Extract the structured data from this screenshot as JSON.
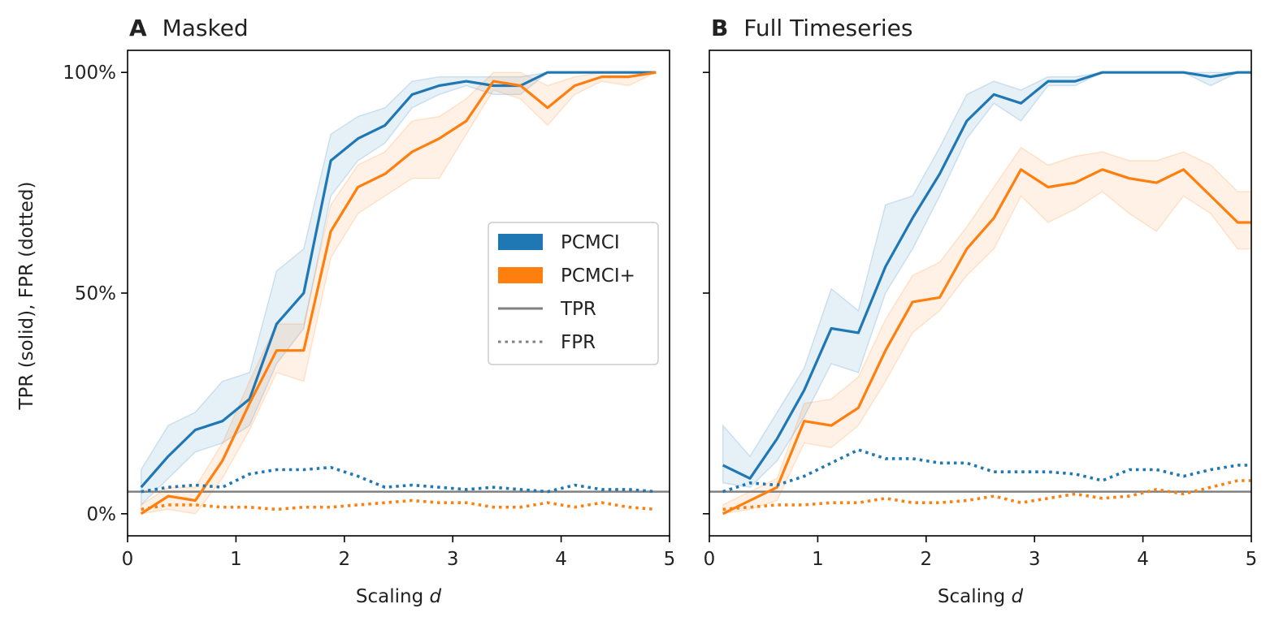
{
  "figure": {
    "ylabel": "TPR (solid), FPR (dotted)",
    "colors": {
      "PCMCI": "#1f77b4",
      "PCMCI+": "#ff7f0e",
      "threshold": "#808080"
    },
    "legend": {
      "placement": "center-right of panel A",
      "entries": [
        {
          "label": "PCMCI",
          "kind": "patch",
          "color": "#1f77b4"
        },
        {
          "label": "PCMCI+",
          "kind": "patch",
          "color": "#ff7f0e"
        },
        {
          "label": "TPR",
          "kind": "solid-line",
          "color": "#808080"
        },
        {
          "label": "FPR",
          "kind": "dotted-line",
          "color": "#808080"
        }
      ]
    }
  },
  "chart_data": [
    {
      "type": "line",
      "panel_letter": "A",
      "title": "Masked",
      "xlabel_prefix": "Scaling ",
      "xlabel_var": "d",
      "xlim": [
        0,
        5
      ],
      "ylim": [
        -0.05,
        1.05
      ],
      "xticks": [
        0,
        1,
        2,
        3,
        4,
        5
      ],
      "yticks": [
        {
          "value": 0,
          "label": "0%"
        },
        {
          "value": 0.5,
          "label": "50%"
        },
        {
          "value": 1,
          "label": "100%"
        }
      ],
      "threshold": 0.05,
      "x": [
        0.125,
        0.375,
        0.625,
        0.875,
        1.125,
        1.375,
        1.625,
        1.875,
        2.125,
        2.375,
        2.625,
        2.875,
        3.125,
        3.375,
        3.625,
        3.875,
        4.125,
        4.375,
        4.625,
        4.875
      ],
      "series": [
        {
          "name": "PCMCI",
          "metric": "TPR",
          "values": [
            0.06,
            0.13,
            0.19,
            0.21,
            0.26,
            0.43,
            0.5,
            0.8,
            0.85,
            0.88,
            0.95,
            0.97,
            0.98,
            0.97,
            0.97,
            1.0,
            1.0,
            1.0,
            1.0,
            1.0
          ],
          "lower": [
            0.02,
            0.08,
            0.14,
            0.16,
            0.2,
            0.34,
            0.42,
            0.72,
            0.8,
            0.84,
            0.92,
            0.95,
            0.97,
            0.95,
            0.95,
            1.0,
            1.0,
            1.0,
            1.0,
            1.0
          ],
          "upper": [
            0.1,
            0.2,
            0.23,
            0.3,
            0.32,
            0.55,
            0.6,
            0.86,
            0.9,
            0.92,
            0.98,
            0.99,
            0.99,
            0.99,
            0.99,
            1.0,
            1.0,
            1.0,
            1.0,
            1.0
          ]
        },
        {
          "name": "PCMCI+",
          "metric": "TPR",
          "values": [
            0.0,
            0.04,
            0.03,
            0.12,
            0.25,
            0.37,
            0.37,
            0.64,
            0.74,
            0.77,
            0.82,
            0.85,
            0.89,
            0.98,
            0.97,
            0.92,
            0.97,
            0.99,
            0.99,
            1.0
          ],
          "lower": [
            0.0,
            0.01,
            0.0,
            0.08,
            0.19,
            0.32,
            0.3,
            0.58,
            0.68,
            0.72,
            0.76,
            0.76,
            0.86,
            0.96,
            0.94,
            0.88,
            0.95,
            0.98,
            0.97,
            1.0
          ],
          "upper": [
            0.02,
            0.06,
            0.06,
            0.16,
            0.3,
            0.43,
            0.43,
            0.7,
            0.79,
            0.82,
            0.89,
            0.9,
            0.94,
            1.0,
            1.0,
            0.97,
            0.99,
            1.0,
            1.0,
            1.0
          ]
        },
        {
          "name": "PCMCI",
          "metric": "FPR",
          "values": [
            0.05,
            0.06,
            0.065,
            0.06,
            0.09,
            0.1,
            0.1,
            0.105,
            0.085,
            0.06,
            0.065,
            0.06,
            0.055,
            0.06,
            0.055,
            0.05,
            0.065,
            0.055,
            0.055,
            0.05
          ]
        },
        {
          "name": "PCMCI+",
          "metric": "FPR",
          "values": [
            0.01,
            0.02,
            0.02,
            0.015,
            0.015,
            0.01,
            0.015,
            0.015,
            0.02,
            0.025,
            0.03,
            0.025,
            0.025,
            0.015,
            0.015,
            0.025,
            0.015,
            0.025,
            0.015,
            0.01
          ]
        }
      ]
    },
    {
      "type": "line",
      "panel_letter": "B",
      "title": "Full Timeseries",
      "xlabel_prefix": "Scaling ",
      "xlabel_var": "d",
      "xlim": [
        0,
        5
      ],
      "ylim": [
        -0.05,
        1.05
      ],
      "xticks": [
        0,
        1,
        2,
        3,
        4,
        5
      ],
      "yticks": [
        {
          "value": 0,
          "label": ""
        },
        {
          "value": 0.5,
          "label": ""
        },
        {
          "value": 1,
          "label": ""
        }
      ],
      "threshold": 0.05,
      "x": [
        0.125,
        0.375,
        0.625,
        0.875,
        1.125,
        1.375,
        1.625,
        1.875,
        2.125,
        2.375,
        2.625,
        2.875,
        3.125,
        3.375,
        3.625,
        3.875,
        4.125,
        4.375,
        4.625,
        4.875,
        5.0
      ],
      "series": [
        {
          "name": "PCMCI",
          "metric": "TPR",
          "values": [
            0.11,
            0.08,
            0.17,
            0.28,
            0.42,
            0.41,
            0.56,
            0.67,
            0.77,
            0.89,
            0.95,
            0.93,
            0.98,
            0.98,
            1.0,
            1.0,
            1.0,
            1.0,
            0.99,
            1.0,
            1.0
          ],
          "lower": [
            0.07,
            0.06,
            0.12,
            0.22,
            0.34,
            0.32,
            0.5,
            0.6,
            0.72,
            0.85,
            0.93,
            0.89,
            0.97,
            0.97,
            1.0,
            1.0,
            1.0,
            1.0,
            0.97,
            1.0,
            1.0
          ],
          "upper": [
            0.2,
            0.13,
            0.23,
            0.33,
            0.51,
            0.46,
            0.7,
            0.72,
            0.83,
            0.95,
            0.98,
            0.96,
            0.99,
            0.99,
            1.0,
            1.0,
            1.0,
            1.0,
            1.0,
            1.0,
            1.0
          ]
        },
        {
          "name": "PCMCI+",
          "metric": "TPR",
          "values": [
            0.0,
            0.03,
            0.06,
            0.21,
            0.2,
            0.24,
            0.37,
            0.48,
            0.49,
            0.6,
            0.67,
            0.78,
            0.74,
            0.75,
            0.78,
            0.76,
            0.75,
            0.78,
            0.72,
            0.66,
            0.66
          ],
          "lower": [
            0.0,
            0.01,
            0.03,
            0.16,
            0.15,
            0.2,
            0.3,
            0.41,
            0.46,
            0.54,
            0.6,
            0.72,
            0.66,
            0.69,
            0.73,
            0.68,
            0.64,
            0.72,
            0.68,
            0.6,
            0.6
          ],
          "upper": [
            0.02,
            0.05,
            0.08,
            0.25,
            0.26,
            0.31,
            0.44,
            0.54,
            0.57,
            0.65,
            0.74,
            0.83,
            0.79,
            0.81,
            0.82,
            0.8,
            0.8,
            0.82,
            0.79,
            0.73,
            0.73
          ]
        },
        {
          "name": "PCMCI",
          "metric": "FPR",
          "values": [
            0.05,
            0.07,
            0.065,
            0.085,
            0.115,
            0.145,
            0.125,
            0.125,
            0.115,
            0.115,
            0.095,
            0.095,
            0.095,
            0.09,
            0.075,
            0.1,
            0.1,
            0.085,
            0.1,
            0.11,
            0.11
          ]
        },
        {
          "name": "PCMCI+",
          "metric": "FPR",
          "values": [
            0.01,
            0.015,
            0.02,
            0.02,
            0.025,
            0.025,
            0.035,
            0.025,
            0.025,
            0.03,
            0.04,
            0.025,
            0.035,
            0.045,
            0.035,
            0.04,
            0.055,
            0.045,
            0.06,
            0.075,
            0.075
          ]
        }
      ]
    }
  ]
}
